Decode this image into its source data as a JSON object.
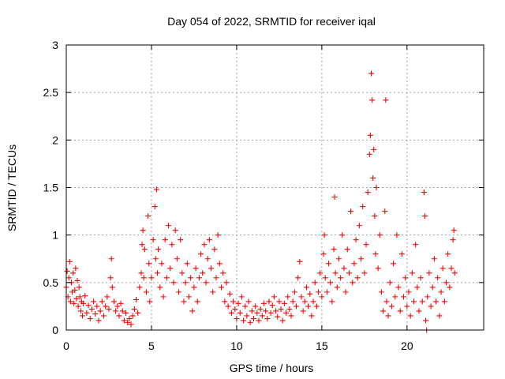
{
  "chart_data": {
    "type": "scatter",
    "title": "Day 054 of 2022, SRMTID for receiver iqal",
    "xlabel": "GPS time / hours",
    "ylabel": "SRMTID / TECUs",
    "xlim": [
      0,
      24.5
    ],
    "ylim": [
      0,
      3
    ],
    "xticks": [
      0,
      5,
      10,
      15,
      20
    ],
    "yticks": [
      0,
      0.5,
      1,
      1.5,
      2,
      2.5,
      3
    ],
    "xtick_labels": [
      "0",
      "5",
      "10",
      "15",
      "20"
    ],
    "ytick_labels": [
      "0",
      "0.5",
      "1",
      "1.5",
      "2",
      "2.5",
      "3"
    ],
    "grid": true,
    "marker": "+",
    "color": "#ff0000",
    "series": [
      {
        "name": "SRMTID",
        "envelope_note": "dense scatter; representative sampled points (hour, TECU)",
        "points": [
          [
            0.0,
            0.45
          ],
          [
            0.05,
            0.62
          ],
          [
            0.1,
            0.35
          ],
          [
            0.15,
            0.55
          ],
          [
            0.2,
            0.72
          ],
          [
            0.25,
            0.3
          ],
          [
            0.3,
            0.5
          ],
          [
            0.35,
            0.4
          ],
          [
            0.4,
            0.6
          ],
          [
            0.45,
            0.28
          ],
          [
            0.5,
            0.42
          ],
          [
            0.55,
            0.65
          ],
          [
            0.6,
            0.33
          ],
          [
            0.65,
            0.52
          ],
          [
            0.7,
            0.25
          ],
          [
            0.75,
            0.45
          ],
          [
            0.8,
            0.35
          ],
          [
            0.85,
            0.2
          ],
          [
            0.9,
            0.3
          ],
          [
            0.95,
            0.15
          ],
          [
            1.0,
            0.28
          ],
          [
            1.1,
            0.36
          ],
          [
            1.2,
            0.18
          ],
          [
            1.3,
            0.26
          ],
          [
            1.4,
            0.12
          ],
          [
            1.5,
            0.22
          ],
          [
            1.6,
            0.3
          ],
          [
            1.7,
            0.17
          ],
          [
            1.8,
            0.25
          ],
          [
            1.9,
            0.1
          ],
          [
            2.0,
            0.2
          ],
          [
            2.1,
            0.3
          ],
          [
            2.2,
            0.15
          ],
          [
            2.3,
            0.25
          ],
          [
            2.4,
            0.35
          ],
          [
            2.5,
            0.22
          ],
          [
            2.6,
            0.55
          ],
          [
            2.65,
            0.75
          ],
          [
            2.7,
            0.45
          ],
          [
            2.8,
            0.3
          ],
          [
            2.9,
            0.2
          ],
          [
            3.0,
            0.25
          ],
          [
            3.1,
            0.15
          ],
          [
            3.2,
            0.28
          ],
          [
            3.3,
            0.2
          ],
          [
            3.4,
            0.1
          ],
          [
            3.5,
            0.18
          ],
          [
            3.6,
            0.08
          ],
          [
            3.7,
            0.12
          ],
          [
            3.8,
            0.06
          ],
          [
            3.9,
            0.15
          ],
          [
            4.0,
            0.22
          ],
          [
            4.1,
            0.32
          ],
          [
            4.2,
            0.18
          ],
          [
            4.3,
            0.45
          ],
          [
            4.4,
            0.6
          ],
          [
            4.45,
            0.9
          ],
          [
            4.5,
            1.05
          ],
          [
            4.55,
            0.55
          ],
          [
            4.6,
            0.85
          ],
          [
            4.7,
            0.4
          ],
          [
            4.8,
            1.2
          ],
          [
            4.85,
            0.7
          ],
          [
            4.9,
            0.3
          ],
          [
            5.0,
            0.55
          ],
          [
            5.1,
            0.95
          ],
          [
            5.2,
            1.3
          ],
          [
            5.25,
            0.75
          ],
          [
            5.3,
            1.48
          ],
          [
            5.35,
            0.6
          ],
          [
            5.4,
            0.85
          ],
          [
            5.5,
            0.45
          ],
          [
            5.6,
            0.7
          ],
          [
            5.7,
            0.35
          ],
          [
            5.8,
            0.95
          ],
          [
            5.9,
            0.55
          ],
          [
            6.0,
            1.1
          ],
          [
            6.1,
            0.65
          ],
          [
            6.2,
            0.9
          ],
          [
            6.3,
            0.5
          ],
          [
            6.4,
            1.05
          ],
          [
            6.5,
            0.75
          ],
          [
            6.6,
            0.4
          ],
          [
            6.7,
            0.95
          ],
          [
            6.8,
            0.6
          ],
          [
            6.9,
            0.3
          ],
          [
            7.0,
            0.5
          ],
          [
            7.1,
            0.7
          ],
          [
            7.2,
            0.35
          ],
          [
            7.3,
            0.55
          ],
          [
            7.4,
            0.2
          ],
          [
            7.5,
            0.45
          ],
          [
            7.6,
            0.65
          ],
          [
            7.7,
            0.3
          ],
          [
            7.8,
            0.55
          ],
          [
            7.9,
            0.8
          ],
          [
            8.0,
            0.6
          ],
          [
            8.1,
            0.9
          ],
          [
            8.2,
            0.5
          ],
          [
            8.3,
            0.75
          ],
          [
            8.4,
            0.95
          ],
          [
            8.5,
            0.65
          ],
          [
            8.6,
            0.4
          ],
          [
            8.7,
            0.85
          ],
          [
            8.8,
            0.55
          ],
          [
            8.9,
            1.0
          ],
          [
            9.0,
            0.7
          ],
          [
            9.1,
            0.45
          ],
          [
            9.2,
            0.6
          ],
          [
            9.3,
            0.3
          ],
          [
            9.4,
            0.5
          ],
          [
            9.5,
            0.25
          ],
          [
            9.6,
            0.38
          ],
          [
            9.7,
            0.18
          ],
          [
            9.8,
            0.3
          ],
          [
            9.9,
            0.22
          ],
          [
            10.0,
            0.12
          ],
          [
            10.1,
            0.28
          ],
          [
            10.2,
            0.18
          ],
          [
            10.3,
            0.35
          ],
          [
            10.4,
            0.1
          ],
          [
            10.5,
            0.25
          ],
          [
            10.6,
            0.15
          ],
          [
            10.7,
            0.3
          ],
          [
            10.8,
            0.08
          ],
          [
            10.9,
            0.2
          ],
          [
            11.0,
            0.12
          ],
          [
            11.1,
            0.25
          ],
          [
            11.2,
            0.18
          ],
          [
            11.3,
            0.1
          ],
          [
            11.4,
            0.22
          ],
          [
            11.5,
            0.15
          ],
          [
            11.6,
            0.28
          ],
          [
            11.7,
            0.2
          ],
          [
            11.8,
            0.12
          ],
          [
            11.9,
            0.3
          ],
          [
            12.0,
            0.18
          ],
          [
            12.1,
            0.26
          ],
          [
            12.2,
            0.35
          ],
          [
            12.3,
            0.2
          ],
          [
            12.4,
            0.14
          ],
          [
            12.5,
            0.3
          ],
          [
            12.6,
            0.22
          ],
          [
            12.7,
            0.1
          ],
          [
            12.8,
            0.28
          ],
          [
            12.9,
            0.18
          ],
          [
            13.0,
            0.35
          ],
          [
            13.1,
            0.22
          ],
          [
            13.2,
            0.15
          ],
          [
            13.3,
            0.3
          ],
          [
            13.4,
            0.4
          ],
          [
            13.5,
            0.25
          ],
          [
            13.6,
            0.55
          ],
          [
            13.7,
            0.72
          ],
          [
            13.8,
            0.35
          ],
          [
            13.9,
            0.2
          ],
          [
            14.0,
            0.3
          ],
          [
            14.1,
            0.45
          ],
          [
            14.2,
            0.25
          ],
          [
            14.3,
            0.38
          ],
          [
            14.4,
            0.15
          ],
          [
            14.5,
            0.3
          ],
          [
            14.6,
            0.5
          ],
          [
            14.7,
            0.25
          ],
          [
            14.8,
            0.4
          ],
          [
            14.9,
            0.6
          ],
          [
            15.0,
            0.35
          ],
          [
            15.1,
            0.8
          ],
          [
            15.15,
            1.0
          ],
          [
            15.2,
            0.55
          ],
          [
            15.3,
            0.4
          ],
          [
            15.4,
            0.7
          ],
          [
            15.5,
            0.5
          ],
          [
            15.6,
            0.3
          ],
          [
            15.7,
            0.85
          ],
          [
            15.75,
            1.4
          ],
          [
            15.8,
            0.6
          ],
          [
            15.9,
            0.45
          ],
          [
            16.0,
            0.75
          ],
          [
            16.1,
            0.55
          ],
          [
            16.2,
            1.0
          ],
          [
            16.3,
            0.65
          ],
          [
            16.4,
            0.4
          ],
          [
            16.5,
            0.85
          ],
          [
            16.6,
            0.6
          ],
          [
            16.7,
            1.25
          ],
          [
            16.8,
            0.5
          ],
          [
            16.9,
            0.7
          ],
          [
            17.0,
            0.95
          ],
          [
            17.1,
            0.55
          ],
          [
            17.2,
            1.1
          ],
          [
            17.3,
            0.75
          ],
          [
            17.4,
            1.3
          ],
          [
            17.5,
            0.6
          ],
          [
            17.6,
            0.9
          ],
          [
            17.7,
            1.45
          ],
          [
            17.8,
            1.85
          ],
          [
            17.85,
            2.05
          ],
          [
            17.9,
            2.7
          ],
          [
            17.95,
            2.42
          ],
          [
            18.0,
            1.6
          ],
          [
            18.05,
            1.9
          ],
          [
            18.1,
            1.2
          ],
          [
            18.15,
            0.8
          ],
          [
            18.2,
            1.5
          ],
          [
            18.3,
            0.65
          ],
          [
            18.4,
            1.0
          ],
          [
            18.5,
            0.4
          ],
          [
            18.6,
            0.2
          ],
          [
            18.7,
            1.25
          ],
          [
            18.75,
            2.42
          ],
          [
            18.8,
            0.3
          ],
          [
            18.9,
            0.15
          ],
          [
            19.0,
            0.5
          ],
          [
            19.1,
            0.25
          ],
          [
            19.2,
            0.7
          ],
          [
            19.3,
            0.35
          ],
          [
            19.4,
            1.0
          ],
          [
            19.5,
            0.45
          ],
          [
            19.6,
            0.2
          ],
          [
            19.7,
            0.8
          ],
          [
            19.8,
            0.35
          ],
          [
            19.9,
            0.55
          ],
          [
            20.0,
            0.25
          ],
          [
            20.1,
            0.4
          ],
          [
            20.2,
            0.15
          ],
          [
            20.3,
            0.6
          ],
          [
            20.4,
            0.3
          ],
          [
            20.5,
            0.9
          ],
          [
            20.6,
            0.45
          ],
          [
            20.7,
            0.2
          ],
          [
            20.8,
            0.55
          ],
          [
            20.9,
            0.3
          ],
          [
            21.0,
            1.45
          ],
          [
            21.05,
            1.2
          ],
          [
            21.1,
            0.1
          ],
          [
            21.15,
            0.0
          ],
          [
            21.2,
            0.35
          ],
          [
            21.3,
            0.6
          ],
          [
            21.4,
            0.25
          ],
          [
            21.5,
            0.45
          ],
          [
            21.6,
            0.75
          ],
          [
            21.7,
            0.3
          ],
          [
            21.8,
            0.55
          ],
          [
            21.9,
            0.15
          ],
          [
            22.0,
            0.4
          ],
          [
            22.1,
            0.65
          ],
          [
            22.2,
            0.3
          ],
          [
            22.3,
            0.5
          ],
          [
            22.4,
            0.8
          ],
          [
            22.5,
            0.45
          ],
          [
            22.6,
            0.65
          ],
          [
            22.7,
            0.95
          ],
          [
            22.75,
            1.05
          ],
          [
            22.8,
            0.6
          ]
        ]
      }
    ]
  }
}
